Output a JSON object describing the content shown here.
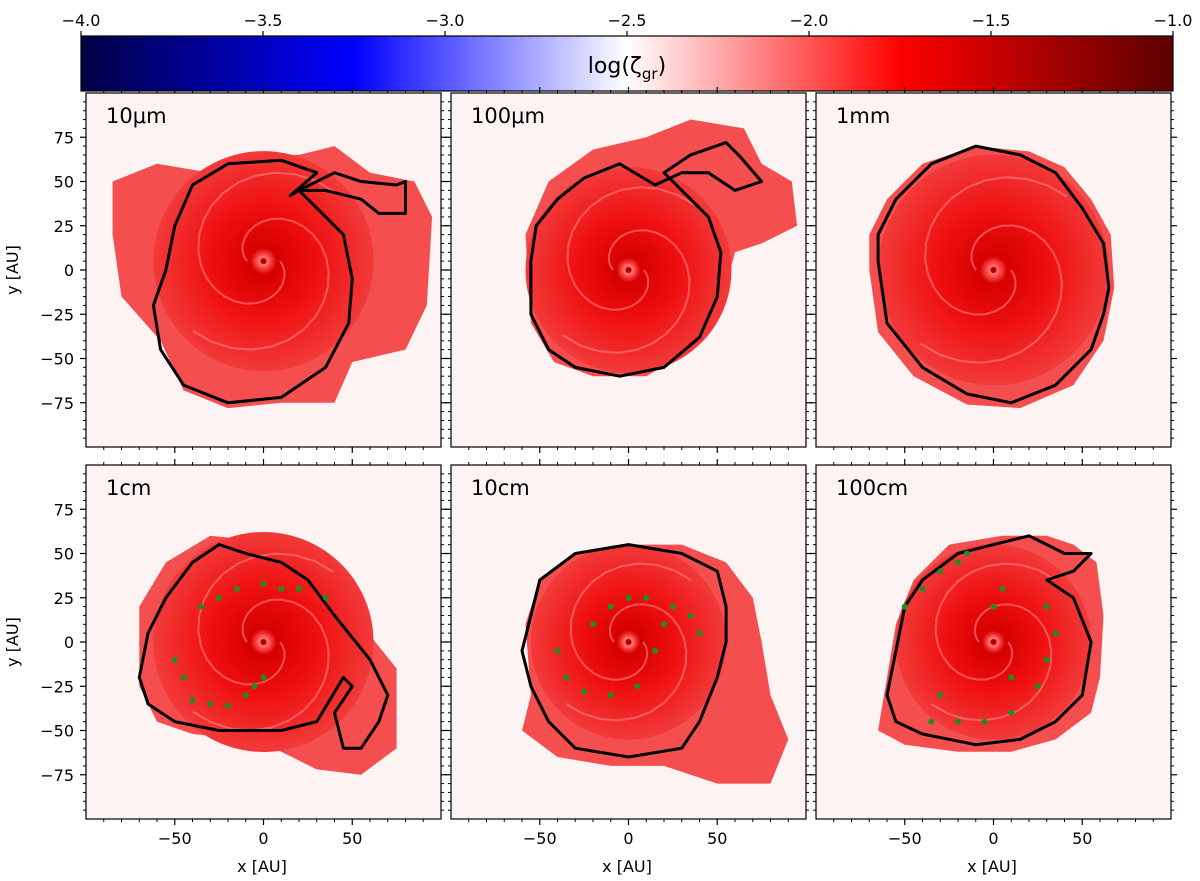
{
  "chart_data": {
    "type": "heatmap",
    "colorbar": {
      "label_main": "log(ζ",
      "label_sub": "gr",
      "label_close": ")",
      "range": [
        -4.0,
        -1.0
      ],
      "ticks": [
        -4.0,
        -3.5,
        -3.0,
        -2.5,
        -2.0,
        -1.5,
        -1.0
      ],
      "tick_labels": [
        "−4.0",
        "−3.5",
        "−3.0",
        "−2.5",
        "−2.0",
        "−1.5",
        "−1.0"
      ],
      "colors": [
        "#000045",
        "#0000ff",
        "#ffffff",
        "#ff0000",
        "#5c0000"
      ]
    },
    "xlabel": "x [AU]",
    "ylabel": "y [AU]",
    "xlim": [
      -100,
      100
    ],
    "ylim": [
      -100,
      100
    ],
    "ticks": [
      -50,
      0,
      50
    ],
    "tick_labels_x": [
      "−50",
      "0",
      "50"
    ],
    "ticks_y": [
      -75,
      -50,
      -25,
      0,
      25,
      50,
      75
    ],
    "tick_labels_y": [
      "−75",
      "−50",
      "−25",
      "0",
      "25",
      "50",
      "75"
    ],
    "panels": [
      {
        "label": "10μm",
        "center": [
          0,
          5
        ],
        "disk_radius": 62,
        "contour_color": "#000000",
        "contour": [
          [
            -62,
            -20
          ],
          [
            -58,
            -45
          ],
          [
            -45,
            -65
          ],
          [
            -20,
            -75
          ],
          [
            10,
            -72
          ],
          [
            35,
            -55
          ],
          [
            48,
            -30
          ],
          [
            50,
            -5
          ],
          [
            45,
            20
          ],
          [
            30,
            35
          ],
          [
            20,
            45
          ],
          [
            40,
            55
          ],
          [
            55,
            50
          ],
          [
            75,
            48
          ],
          [
            80,
            50
          ],
          [
            80,
            32
          ],
          [
            65,
            32
          ],
          [
            55,
            40
          ],
          [
            35,
            45
          ],
          [
            20,
            45
          ],
          [
            15,
            42
          ],
          [
            30,
            55
          ],
          [
            10,
            62
          ],
          [
            -20,
            60
          ],
          [
            -40,
            48
          ],
          [
            -50,
            25
          ],
          [
            -55,
            0
          ],
          [
            -62,
            -20
          ]
        ],
        "fill_contour": [
          [
            -85,
            50
          ],
          [
            -60,
            60
          ],
          [
            -30,
            55
          ],
          [
            -10,
            65
          ],
          [
            20,
            65
          ],
          [
            40,
            70
          ],
          [
            60,
            55
          ],
          [
            85,
            50
          ],
          [
            95,
            30
          ],
          [
            92,
            -20
          ],
          [
            80,
            -45
          ],
          [
            50,
            -52
          ],
          [
            40,
            -75
          ],
          [
            10,
            -75
          ],
          [
            -20,
            -78
          ],
          [
            -45,
            -68
          ],
          [
            -58,
            -40
          ],
          [
            -80,
            -15
          ],
          [
            -85,
            20
          ]
        ],
        "spiral_markers": []
      },
      {
        "label": "100μm",
        "center": [
          0,
          0
        ],
        "disk_radius": 58,
        "contour_color": "#000000",
        "contour": [
          [
            -55,
            5
          ],
          [
            -55,
            -25
          ],
          [
            -45,
            -45
          ],
          [
            -30,
            -55
          ],
          [
            -5,
            -60
          ],
          [
            20,
            -55
          ],
          [
            40,
            -38
          ],
          [
            50,
            -15
          ],
          [
            52,
            10
          ],
          [
            45,
            30
          ],
          [
            30,
            45
          ],
          [
            20,
            55
          ],
          [
            35,
            65
          ],
          [
            55,
            72
          ],
          [
            62,
            65
          ],
          [
            75,
            50
          ],
          [
            60,
            45
          ],
          [
            45,
            55
          ],
          [
            30,
            55
          ],
          [
            15,
            48
          ],
          [
            -5,
            60
          ],
          [
            -25,
            52
          ],
          [
            -40,
            40
          ],
          [
            -52,
            25
          ],
          [
            -55,
            5
          ]
        ],
        "fill_contour": [
          [
            -55,
            -30
          ],
          [
            -42,
            -52
          ],
          [
            -20,
            -60
          ],
          [
            10,
            -60
          ],
          [
            35,
            -45
          ],
          [
            52,
            -20
          ],
          [
            60,
            10
          ],
          [
            75,
            15
          ],
          [
            95,
            25
          ],
          [
            92,
            50
          ],
          [
            75,
            60
          ],
          [
            65,
            80
          ],
          [
            35,
            85
          ],
          [
            10,
            75
          ],
          [
            -20,
            68
          ],
          [
            -45,
            50
          ],
          [
            -58,
            20
          ]
        ],
        "spiral_markers": []
      },
      {
        "label": "1mm",
        "center": [
          0,
          0
        ],
        "disk_radius": 65,
        "contour_color": "#000000",
        "contour": [
          [
            -65,
            5
          ],
          [
            -60,
            -30
          ],
          [
            -40,
            -55
          ],
          [
            -15,
            -70
          ],
          [
            10,
            -75
          ],
          [
            35,
            -65
          ],
          [
            55,
            -45
          ],
          [
            62,
            -25
          ],
          [
            65,
            -10
          ],
          [
            62,
            15
          ],
          [
            50,
            35
          ],
          [
            35,
            55
          ],
          [
            15,
            65
          ],
          [
            -10,
            70
          ],
          [
            -35,
            60
          ],
          [
            -55,
            40
          ],
          [
            -65,
            20
          ],
          [
            -65,
            5
          ]
        ],
        "fill_contour": [
          [
            -70,
            0
          ],
          [
            -65,
            -35
          ],
          [
            -45,
            -60
          ],
          [
            -15,
            -76
          ],
          [
            15,
            -78
          ],
          [
            45,
            -65
          ],
          [
            62,
            -40
          ],
          [
            68,
            -10
          ],
          [
            66,
            20
          ],
          [
            55,
            40
          ],
          [
            40,
            58
          ],
          [
            20,
            67
          ],
          [
            -10,
            70
          ],
          [
            -40,
            60
          ],
          [
            -60,
            40
          ],
          [
            -70,
            20
          ]
        ],
        "spiral_markers": []
      },
      {
        "label": "1cm",
        "center": [
          0,
          0
        ],
        "disk_radius": 62,
        "contour_color": "#000000",
        "contour": [
          [
            -70,
            -20
          ],
          [
            -65,
            -35
          ],
          [
            -50,
            -45
          ],
          [
            -25,
            -50
          ],
          [
            10,
            -50
          ],
          [
            30,
            -45
          ],
          [
            45,
            -20
          ],
          [
            50,
            -25
          ],
          [
            40,
            -40
          ],
          [
            45,
            -60
          ],
          [
            55,
            -60
          ],
          [
            65,
            -45
          ],
          [
            70,
            -30
          ],
          [
            60,
            -10
          ],
          [
            40,
            15
          ],
          [
            25,
            35
          ],
          [
            10,
            45
          ],
          [
            -10,
            50
          ],
          [
            -25,
            55
          ],
          [
            -40,
            45
          ],
          [
            -55,
            25
          ],
          [
            -65,
            5
          ],
          [
            -70,
            -20
          ]
        ],
        "fill_contour": [
          [
            -70,
            -25
          ],
          [
            -60,
            -45
          ],
          [
            -40,
            -52
          ],
          [
            -10,
            -55
          ],
          [
            10,
            -62
          ],
          [
            30,
            -72
          ],
          [
            55,
            -75
          ],
          [
            75,
            -60
          ],
          [
            75,
            -35
          ],
          [
            75,
            -15
          ],
          [
            55,
            10
          ],
          [
            40,
            30
          ],
          [
            20,
            50
          ],
          [
            -10,
            58
          ],
          [
            -30,
            60
          ],
          [
            -55,
            45
          ],
          [
            -70,
            20
          ]
        ],
        "spiral_markers": [
          [
            -40,
            -33
          ],
          [
            -30,
            -35
          ],
          [
            -20,
            -36
          ],
          [
            -10,
            -30
          ],
          [
            -5,
            -25
          ],
          [
            0,
            -20
          ],
          [
            -35,
            20
          ],
          [
            -25,
            25
          ],
          [
            -15,
            30
          ],
          [
            0,
            33
          ],
          [
            20,
            30
          ],
          [
            35,
            25
          ],
          [
            -50,
            -10
          ],
          [
            -45,
            -20
          ],
          [
            10,
            30
          ]
        ]
      },
      {
        "label": "10cm",
        "center": [
          0,
          0
        ],
        "disk_radius": 55,
        "contour_color": "#000000",
        "contour": [
          [
            -55,
            15
          ],
          [
            -50,
            35
          ],
          [
            -30,
            50
          ],
          [
            0,
            55
          ],
          [
            30,
            50
          ],
          [
            50,
            40
          ],
          [
            55,
            20
          ],
          [
            55,
            0
          ],
          [
            50,
            -20
          ],
          [
            40,
            -45
          ],
          [
            30,
            -60
          ],
          [
            0,
            -65
          ],
          [
            -30,
            -60
          ],
          [
            -45,
            -45
          ],
          [
            -55,
            -25
          ],
          [
            -60,
            -5
          ],
          [
            -55,
            15
          ]
        ],
        "fill_contour": [
          [
            -55,
            -30
          ],
          [
            -60,
            -50
          ],
          [
            -40,
            -65
          ],
          [
            -10,
            -70
          ],
          [
            20,
            -70
          ],
          [
            50,
            -80
          ],
          [
            80,
            -80
          ],
          [
            90,
            -55
          ],
          [
            80,
            -30
          ],
          [
            75,
            0
          ],
          [
            70,
            25
          ],
          [
            55,
            45
          ],
          [
            30,
            55
          ],
          [
            0,
            55
          ],
          [
            -30,
            50
          ],
          [
            -50,
            35
          ],
          [
            -58,
            10
          ]
        ],
        "spiral_markers": [
          [
            -40,
            -5
          ],
          [
            -35,
            -20
          ],
          [
            -25,
            -28
          ],
          [
            -10,
            -30
          ],
          [
            5,
            -25
          ],
          [
            15,
            -5
          ],
          [
            20,
            10
          ],
          [
            25,
            20
          ],
          [
            35,
            15
          ],
          [
            40,
            5
          ],
          [
            -20,
            10
          ],
          [
            -10,
            20
          ],
          [
            0,
            25
          ],
          [
            10,
            25
          ]
        ]
      },
      {
        "label": "100cm",
        "center": [
          0,
          0
        ],
        "disk_radius": 55,
        "contour_color": "#000000",
        "contour": [
          [
            -60,
            -30
          ],
          [
            -55,
            -5
          ],
          [
            -50,
            20
          ],
          [
            -40,
            35
          ],
          [
            -20,
            50
          ],
          [
            0,
            55
          ],
          [
            20,
            60
          ],
          [
            30,
            55
          ],
          [
            40,
            50
          ],
          [
            55,
            50
          ],
          [
            45,
            40
          ],
          [
            30,
            35
          ],
          [
            45,
            25
          ],
          [
            55,
            0
          ],
          [
            50,
            -30
          ],
          [
            35,
            -45
          ],
          [
            15,
            -55
          ],
          [
            -10,
            -58
          ],
          [
            -40,
            -52
          ],
          [
            -55,
            -45
          ],
          [
            -60,
            -30
          ]
        ],
        "fill_contour": [
          [
            -65,
            -50
          ],
          [
            -60,
            -20
          ],
          [
            -55,
            10
          ],
          [
            -45,
            35
          ],
          [
            -25,
            55
          ],
          [
            5,
            60
          ],
          [
            30,
            60
          ],
          [
            45,
            55
          ],
          [
            58,
            45
          ],
          [
            62,
            15
          ],
          [
            60,
            -20
          ],
          [
            55,
            -40
          ],
          [
            35,
            -55
          ],
          [
            10,
            -62
          ],
          [
            -20,
            -62
          ],
          [
            -50,
            -58
          ]
        ],
        "spiral_markers": [
          [
            -35,
            -45
          ],
          [
            -20,
            -45
          ],
          [
            -5,
            -45
          ],
          [
            10,
            -40
          ],
          [
            25,
            -25
          ],
          [
            30,
            -10
          ],
          [
            35,
            5
          ],
          [
            30,
            20
          ],
          [
            -50,
            20
          ],
          [
            -40,
            30
          ],
          [
            -30,
            40
          ],
          [
            -20,
            45
          ],
          [
            -15,
            50
          ],
          [
            5,
            30
          ],
          [
            0,
            20
          ],
          [
            10,
            -20
          ],
          [
            -30,
            -30
          ]
        ]
      }
    ]
  }
}
